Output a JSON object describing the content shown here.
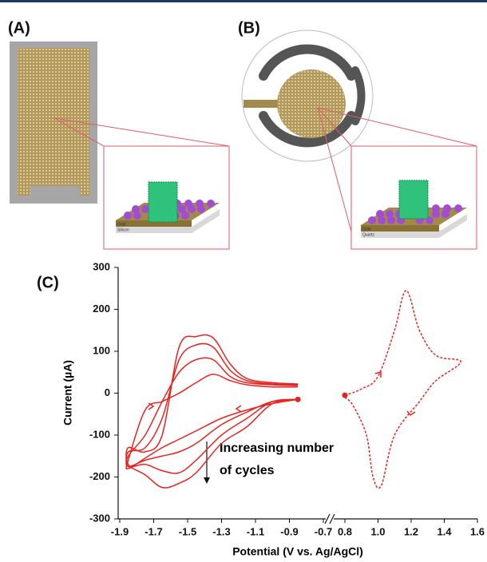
{
  "panels": {
    "a": {
      "label": "(A)",
      "inset_labels": [
        "Gold",
        "Silicon"
      ]
    },
    "b": {
      "label": "(B)",
      "inset_labels": [
        "Gold",
        "Quartz"
      ]
    },
    "c": {
      "label": "(C)"
    }
  },
  "chart_data": {
    "type": "line",
    "x_label": "Potential (V vs. Ag/AgCl)",
    "y_label": "Current (µA)",
    "xlim": [
      -1.9,
      1.6
    ],
    "x_break": [
      -0.7,
      0.8
    ],
    "xticks": [
      -1.9,
      -1.7,
      -1.5,
      -1.3,
      -1.1,
      -0.9,
      -0.7,
      0.8,
      {
        "value": 1,
        "label": "1.0"
      },
      1.2,
      1.4,
      1.6
    ],
    "ylim": [
      -300,
      300
    ],
    "yticks": [
      -300,
      -200,
      -100,
      0,
      100,
      200,
      300
    ],
    "annotation": [
      "Increasing number",
      "of cycles"
    ],
    "series": [
      {
        "color": "#e8231f",
        "dashed": false,
        "start_marker": true,
        "x": [
          -0.85,
          -1.0,
          -1.15,
          -1.3,
          -1.45,
          -1.55,
          -1.65,
          -1.75,
          -1.85,
          -1.85,
          -1.75,
          -1.65,
          -1.55,
          -1.45,
          -1.35,
          -1.25,
          -1.15,
          -1.0,
          -0.85
        ],
        "values": [
          -15,
          -25,
          -40,
          -60,
          -90,
          -110,
          -130,
          -155,
          -180,
          -160,
          -40,
          -20,
          0,
          25,
          45,
          30,
          20,
          15,
          15
        ]
      },
      {
        "color": "#e8231f",
        "dashed": false,
        "start_marker": false,
        "x": [
          -0.85,
          -1.0,
          -1.15,
          -1.3,
          -1.45,
          -1.55,
          -1.65,
          -1.75,
          -1.85,
          -1.85,
          -1.75,
          -1.65,
          -1.55,
          -1.45,
          -1.35,
          -1.25,
          -1.15,
          -1.0,
          -0.85
        ],
        "values": [
          -15,
          -20,
          -45,
          -75,
          -120,
          -140,
          -150,
          -160,
          -175,
          -150,
          -100,
          -20,
          50,
          80,
          80,
          40,
          25,
          20,
          18
        ]
      },
      {
        "color": "#e8231f",
        "dashed": false,
        "start_marker": false,
        "x": [
          -0.85,
          -1.0,
          -1.15,
          -1.3,
          -1.45,
          -1.55,
          -1.65,
          -1.75,
          -1.85,
          -1.85,
          -1.75,
          -1.65,
          -1.55,
          -1.45,
          -1.35,
          -1.25,
          -1.15,
          -1.0,
          -0.85
        ],
        "values": [
          -15,
          -20,
          -60,
          -100,
          -160,
          -190,
          -185,
          -170,
          -175,
          -140,
          -130,
          -60,
          80,
          115,
          110,
          55,
          30,
          22,
          20
        ]
      },
      {
        "color": "#e8231f",
        "dashed": false,
        "start_marker": false,
        "x": [
          -0.85,
          -1.0,
          -1.15,
          -1.3,
          -1.45,
          -1.55,
          -1.65,
          -1.75,
          -1.85,
          -1.85,
          -1.75,
          -1.65,
          -1.55,
          -1.45,
          -1.35,
          -1.25,
          -1.15,
          -1.0,
          -0.85
        ],
        "values": [
          -15,
          -25,
          -80,
          -120,
          -190,
          -215,
          -225,
          -195,
          -170,
          -130,
          -140,
          -100,
          110,
          135,
          132,
          70,
          35,
          25,
          22
        ]
      },
      {
        "color": "#e8231f",
        "dashed": true,
        "start_marker": true,
        "x": [
          0.8,
          0.9,
          1.0,
          1.1,
          1.17,
          1.25,
          1.35,
          1.5,
          1.35,
          1.25,
          1.1,
          1.02,
          0.97,
          0.93,
          0.85,
          0.8
        ],
        "values": [
          -5,
          10,
          40,
          150,
          245,
          150,
          90,
          75,
          30,
          -20,
          -100,
          -220,
          -200,
          -100,
          -30,
          -10
        ]
      }
    ]
  }
}
